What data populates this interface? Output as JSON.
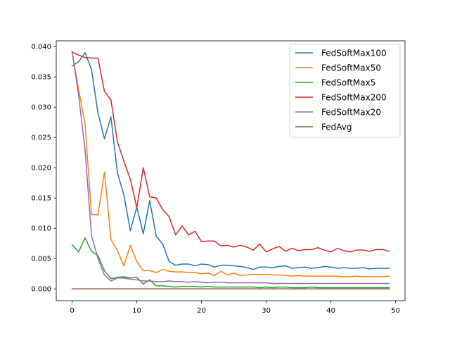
{
  "chart_data": {
    "type": "line",
    "title": "",
    "xlabel": "",
    "ylabel": "",
    "xlim": [
      -2.45,
      51.45
    ],
    "ylim": [
      -0.00195,
      0.04095
    ],
    "x_ticks": [
      0,
      10,
      20,
      30,
      40,
      50
    ],
    "y_ticks": [
      0.0,
      0.005,
      0.01,
      0.015,
      0.02,
      0.025,
      0.03,
      0.035,
      0.04
    ],
    "y_tick_labels": [
      "0.000",
      "0.005",
      "0.010",
      "0.015",
      "0.020",
      "0.025",
      "0.030",
      "0.035",
      "0.040"
    ],
    "grid": false,
    "legend_position": "top-right",
    "x": [
      0,
      1,
      2,
      3,
      4,
      5,
      6,
      7,
      8,
      9,
      10,
      11,
      12,
      13,
      14,
      15,
      16,
      17,
      18,
      19,
      20,
      21,
      22,
      23,
      24,
      25,
      26,
      27,
      28,
      29,
      30,
      31,
      32,
      33,
      34,
      35,
      36,
      37,
      38,
      39,
      40,
      41,
      42,
      43,
      44,
      45,
      46,
      47,
      48,
      49
    ],
    "series": [
      {
        "name": "FedSoftMax100",
        "color": "#1f77b4",
        "values": [
          0.0368,
          0.0375,
          0.039,
          0.0362,
          0.029,
          0.0248,
          0.0284,
          0.0192,
          0.0155,
          0.0096,
          0.0135,
          0.0091,
          0.0146,
          0.0087,
          0.0074,
          0.0045,
          0.0039,
          0.0041,
          0.0041,
          0.0038,
          0.0041,
          0.004,
          0.0036,
          0.0039,
          0.0039,
          0.0038,
          0.0037,
          0.0035,
          0.0032,
          0.0036,
          0.0036,
          0.0035,
          0.0037,
          0.0038,
          0.0034,
          0.0035,
          0.0036,
          0.0034,
          0.0035,
          0.0037,
          0.0036,
          0.0034,
          0.0035,
          0.0034,
          0.0034,
          0.0035,
          0.0033,
          0.0034,
          0.0034,
          0.0034
        ]
      },
      {
        "name": "FedSoftMax50",
        "color": "#ff7f0e",
        "values": [
          0.0391,
          0.033,
          0.0272,
          0.0123,
          0.0122,
          0.0193,
          0.0082,
          0.0063,
          0.0038,
          0.0072,
          0.0045,
          0.003,
          0.003,
          0.0027,
          0.0032,
          0.0029,
          0.0028,
          0.0028,
          0.0027,
          0.0027,
          0.0025,
          0.0026,
          0.0022,
          0.0029,
          0.0023,
          0.0026,
          0.0022,
          0.0023,
          0.0024,
          0.0024,
          0.0024,
          0.0023,
          0.0023,
          0.0022,
          0.0021,
          0.0022,
          0.0021,
          0.0021,
          0.0021,
          0.0021,
          0.0021,
          0.0021,
          0.002,
          0.002,
          0.0021,
          0.002,
          0.002,
          0.002,
          0.002,
          0.0021
        ]
      },
      {
        "name": "FedSoftMax5",
        "color": "#2ca02c",
        "values": [
          0.0073,
          0.0061,
          0.0084,
          0.0062,
          0.0055,
          0.003,
          0.0017,
          0.0019,
          0.002,
          0.0018,
          0.0019,
          0.0008,
          0.0015,
          0.0005,
          0.0005,
          0.0004,
          0.0003,
          0.0004,
          0.0004,
          0.0004,
          0.0003,
          0.0004,
          0.0003,
          0.0003,
          0.0003,
          0.0003,
          0.0003,
          0.0003,
          0.0003,
          0.0002,
          0.0003,
          0.0002,
          0.0003,
          0.0003,
          0.0002,
          0.0002,
          0.0002,
          0.0003,
          0.0002,
          0.0002,
          0.0002,
          0.0002,
          0.0002,
          0.0002,
          0.0002,
          0.0002,
          0.0002,
          0.0002,
          0.0002,
          0.0002
        ]
      },
      {
        "name": "FedSoftMax200",
        "color": "#d62728",
        "values": [
          0.0391,
          0.0386,
          0.0382,
          0.0381,
          0.0381,
          0.0326,
          0.0312,
          0.0243,
          0.0211,
          0.0181,
          0.0134,
          0.02,
          0.0152,
          0.015,
          0.0131,
          0.0119,
          0.0089,
          0.0104,
          0.0089,
          0.0095,
          0.0078,
          0.0079,
          0.0079,
          0.0071,
          0.0072,
          0.0069,
          0.0072,
          0.0069,
          0.0064,
          0.0074,
          0.0061,
          0.0066,
          0.007,
          0.0062,
          0.0067,
          0.0063,
          0.0065,
          0.0065,
          0.0068,
          0.0064,
          0.0061,
          0.0067,
          0.0063,
          0.0061,
          0.0064,
          0.0064,
          0.0062,
          0.0065,
          0.0065,
          0.0062
        ]
      },
      {
        "name": "FedSoftMax20",
        "color": "#9467bd",
        "values": [
          0.0392,
          0.032,
          0.023,
          0.0088,
          0.005,
          0.0023,
          0.0013,
          0.0018,
          0.0018,
          0.0016,
          0.0015,
          0.0013,
          0.0013,
          0.0012,
          0.0012,
          0.0013,
          0.0012,
          0.0012,
          0.0011,
          0.0012,
          0.0011,
          0.001,
          0.0011,
          0.0011,
          0.001,
          0.001,
          0.001,
          0.001,
          0.001,
          0.001,
          0.001,
          0.0009,
          0.0009,
          0.0009,
          0.0009,
          0.0009,
          0.0009,
          0.0009,
          0.0009,
          0.0009,
          0.0009,
          0.0009,
          0.0009,
          0.0009,
          0.0009,
          0.0009,
          0.0009,
          0.0009,
          0.0009,
          0.0009
        ]
      },
      {
        "name": "FedAvg",
        "color": "#8c564b",
        "values": [
          0,
          0,
          0,
          0,
          0,
          0,
          0,
          0,
          0,
          0,
          0,
          0,
          0,
          0,
          0,
          0,
          0,
          0,
          0,
          0,
          0,
          0,
          0,
          0,
          0,
          0,
          0,
          0,
          0,
          0,
          0,
          0,
          0,
          0,
          0,
          0,
          0,
          0,
          0,
          0,
          0,
          0,
          0,
          0,
          0,
          0,
          0,
          0,
          0,
          0
        ]
      }
    ]
  }
}
